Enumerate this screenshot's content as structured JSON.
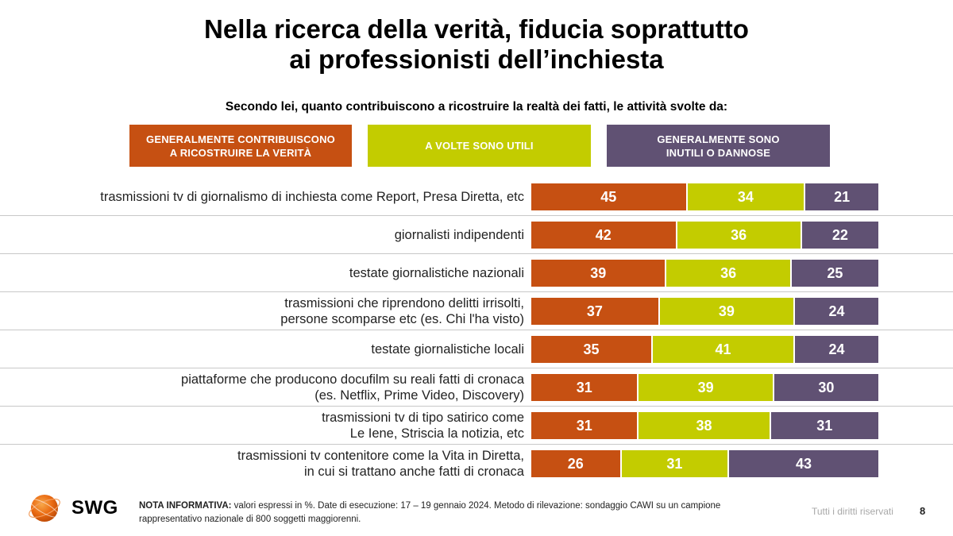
{
  "title_lines": [
    "Nella ricerca della verità, fiducia soprattutto",
    "ai professionisti dell’inchiesta"
  ],
  "subtitle": "Secondo lei, quanto contribuiscono a ricostruire la realtà dei fatti, le attività svolte da:",
  "colors": {
    "contribuiscono": "#c65012",
    "a_volte": "#c3cc00",
    "inutili": "#605173"
  },
  "chart_data": {
    "type": "bar",
    "orientation": "horizontal-stacked-100",
    "title": "Nella ricerca della verità, fiducia soprattutto ai professionisti dell’inchiesta",
    "series": [
      {
        "name": "GENERALMENTE CONTRIBUISCONO A RICOSTRUIRE LA VERITÀ",
        "label_lines": [
          "GENERALMENTE CONTRIBUISCONO",
          "A RICOSTRUIRE LA VERITÀ"
        ],
        "color": "#c65012",
        "values": [
          45,
          42,
          39,
          37,
          35,
          31,
          31,
          26
        ]
      },
      {
        "name": "A VOLTE SONO UTILI",
        "label_lines": [
          "A VOLTE SONO UTILI"
        ],
        "color": "#c3cc00",
        "values": [
          34,
          36,
          36,
          39,
          41,
          39,
          38,
          31
        ]
      },
      {
        "name": "GENERALMENTE SONO INUTILI O DANNOSE",
        "label_lines": [
          "GENERALMENTE SONO",
          "INUTILI O DANNOSE"
        ],
        "color": "#605173",
        "values": [
          21,
          22,
          25,
          24,
          24,
          30,
          31,
          43
        ]
      }
    ],
    "categories": [
      [
        "trasmissioni tv di giornalismo di inchiesta come Report, Presa Diretta, etc"
      ],
      [
        "giornalisti indipendenti"
      ],
      [
        "testate giornalistiche nazionali"
      ],
      [
        "trasmissioni che riprendono delitti irrisolti,",
        "persone scomparse etc (es. Chi l'ha visto)"
      ],
      [
        "testate giornalistiche locali"
      ],
      [
        "piattaforme che producono docufilm su reali fatti di cronaca",
        "(es. Netflix, Prime Video, Discovery)"
      ],
      [
        "trasmissioni tv di tipo satirico come",
        "Le Iene, Striscia la notizia, etc"
      ],
      [
        "trasmissioni tv contenitore come la Vita in Diretta,",
        "in cui si trattano anche fatti di cronaca"
      ]
    ],
    "unit": "%"
  },
  "logo": {
    "text": "SWG"
  },
  "note": {
    "label": "NOTA INFORMATIVA:",
    "text_line1": " valori espressi in %. Date di esecuzione: 17 – 19 gennaio 2024. Metodo di rilevazione: sondaggio CAWI su un campione",
    "text_line2": "rappresentativo nazionale di 800 soggetti maggiorenni."
  },
  "rights": "Tutti i diritti riservati",
  "page_number": "8"
}
